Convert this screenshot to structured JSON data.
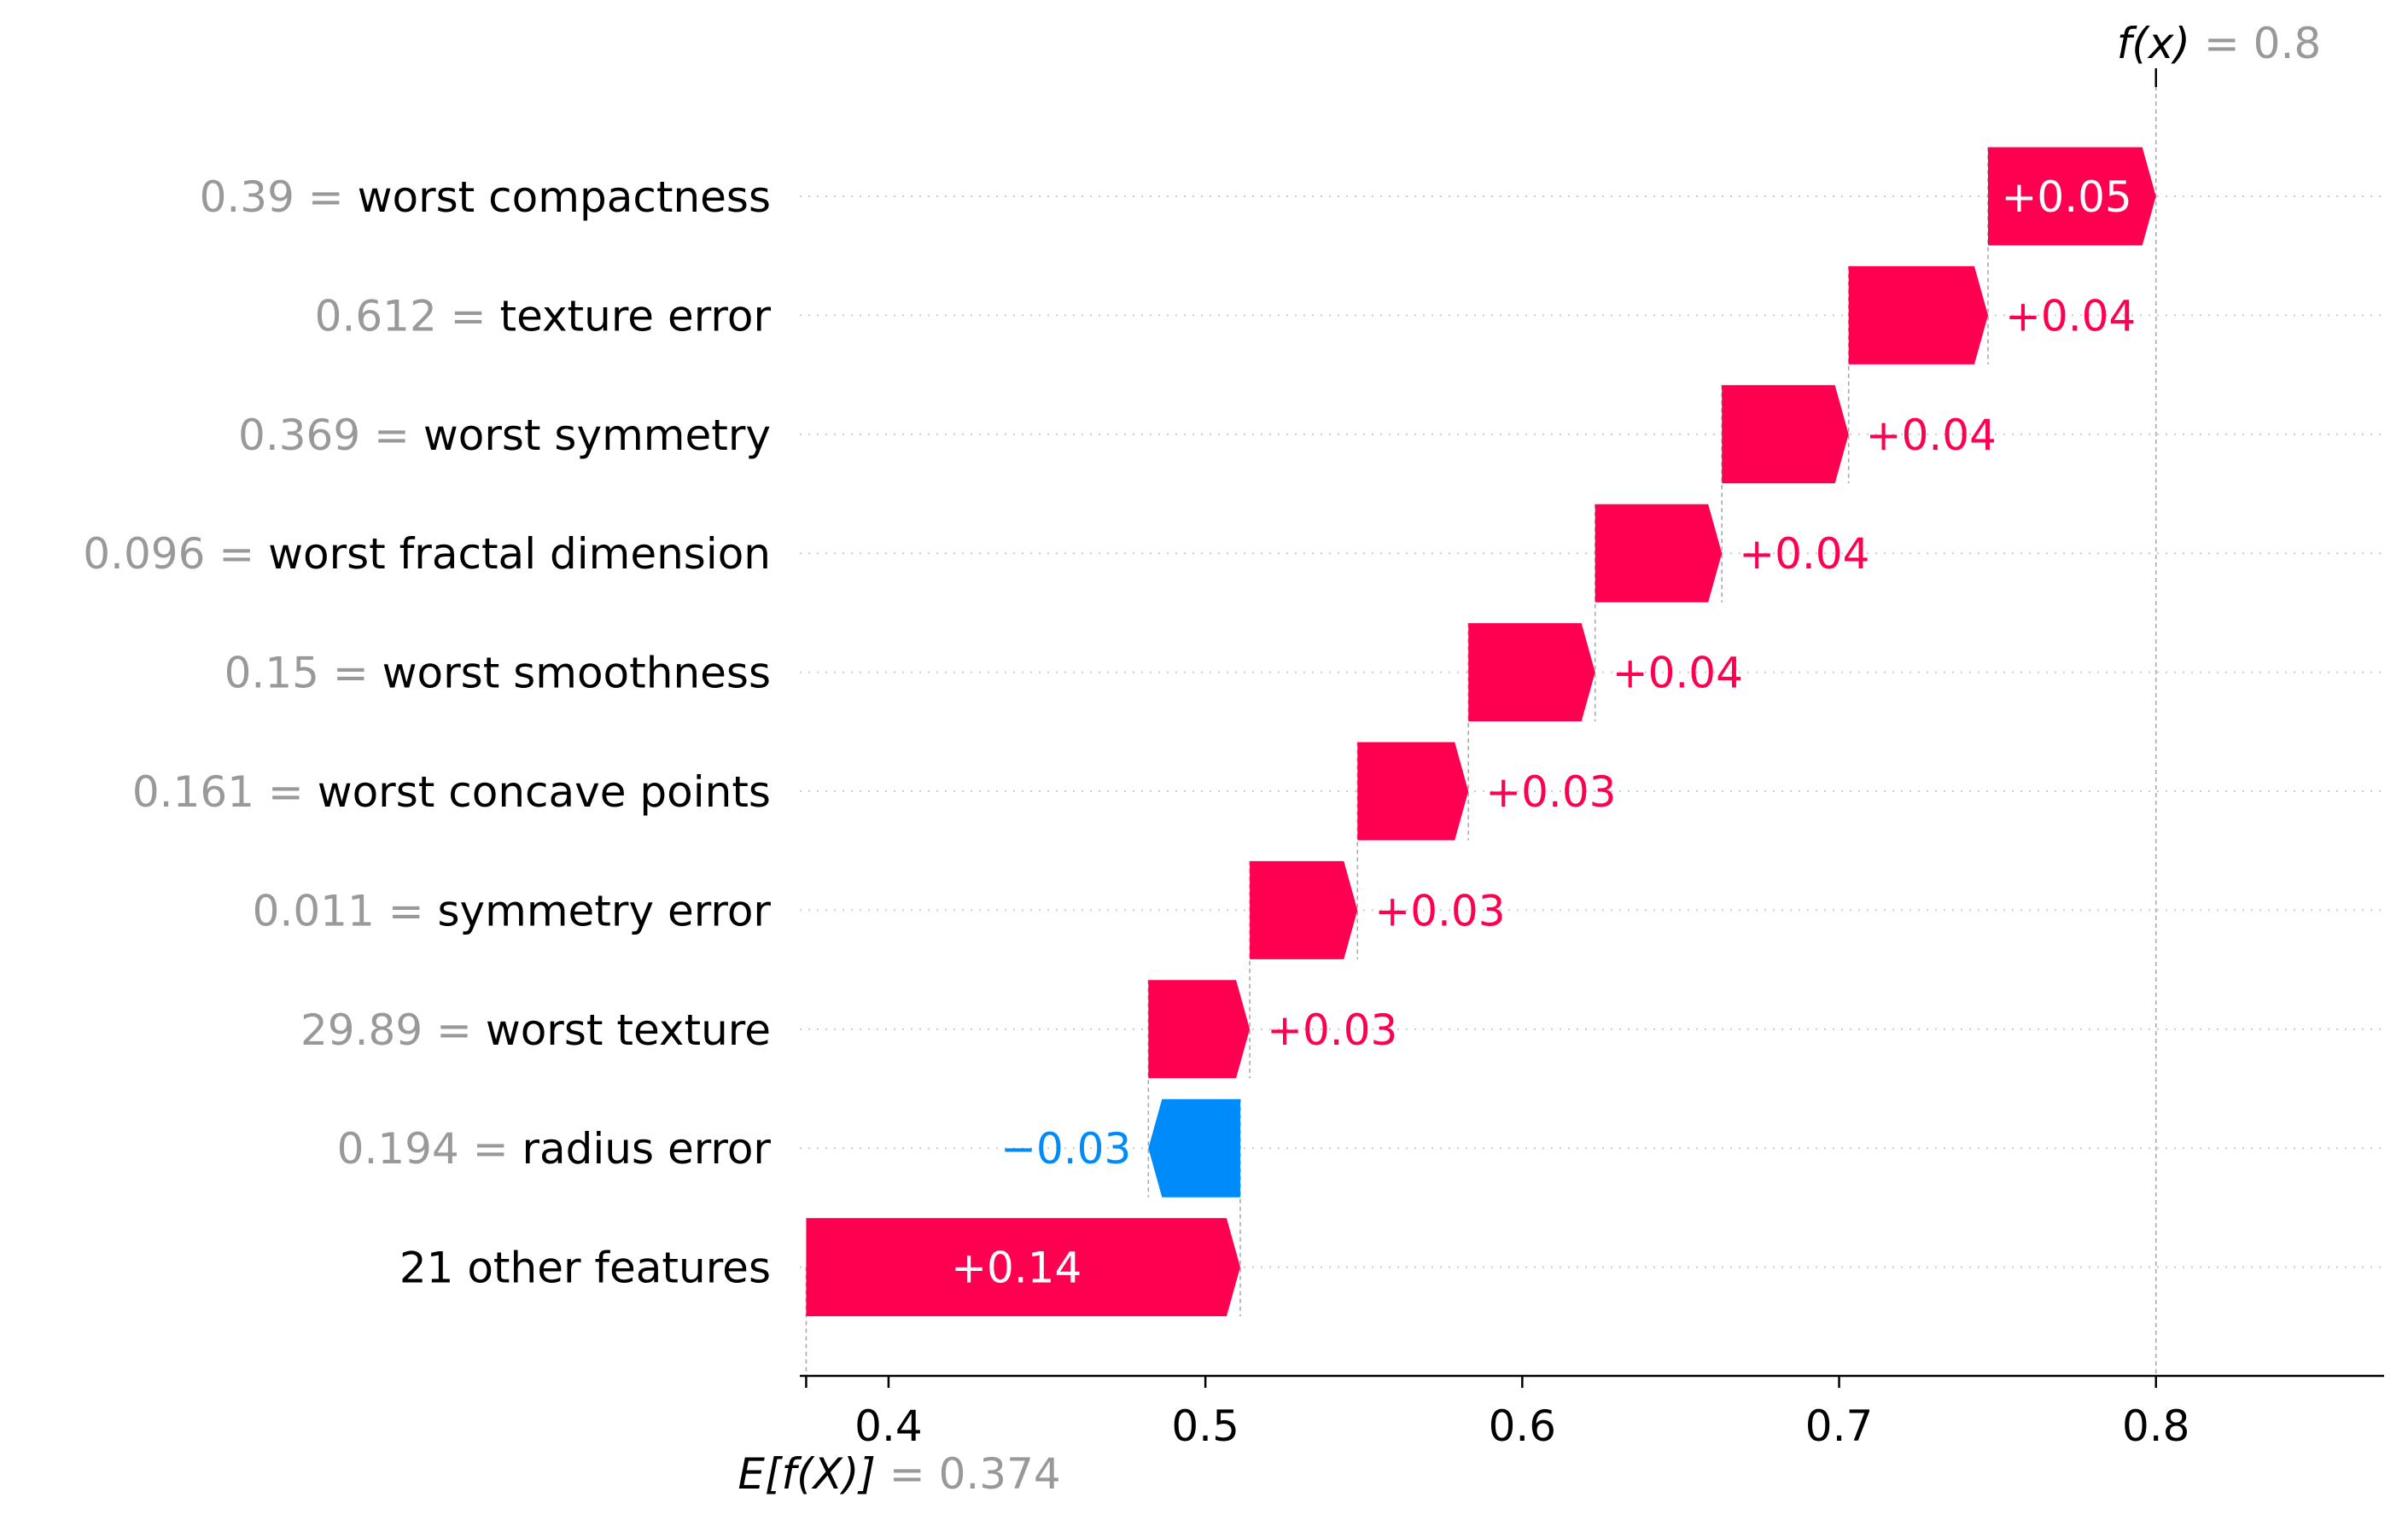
{
  "chart_data": {
    "type": "waterfall",
    "title": "",
    "base_value": 0.374,
    "base_label": {
      "func": "E[f(X)]",
      "value_text": "0.374"
    },
    "output_value": 0.8,
    "output_label": {
      "func": "f(x)",
      "value_text": "0.8"
    },
    "xlim": [
      0.372,
      0.872
    ],
    "xticks": [
      {
        "value": 0.4,
        "label": "0.4"
      },
      {
        "value": 0.5,
        "label": "0.5"
      },
      {
        "value": 0.6,
        "label": "0.6"
      },
      {
        "value": 0.7,
        "label": "0.7"
      },
      {
        "value": 0.8,
        "label": "0.8"
      }
    ],
    "features": [
      {
        "value_text": "0.39",
        "name": "worst compactness",
        "start": 0.747,
        "end": 0.8,
        "label": "+0.05"
      },
      {
        "value_text": "0.612",
        "name": "texture error",
        "start": 0.703,
        "end": 0.747,
        "label": "+0.04"
      },
      {
        "value_text": "0.369",
        "name": "worst symmetry",
        "start": 0.663,
        "end": 0.703,
        "label": "+0.04"
      },
      {
        "value_text": "0.096",
        "name": "worst fractal dimension",
        "start": 0.623,
        "end": 0.663,
        "label": "+0.04"
      },
      {
        "value_text": "0.15",
        "name": "worst smoothness",
        "start": 0.583,
        "end": 0.623,
        "label": "+0.04"
      },
      {
        "value_text": "0.161",
        "name": "worst concave points",
        "start": 0.548,
        "end": 0.583,
        "label": "+0.03"
      },
      {
        "value_text": "0.011",
        "name": "symmetry error",
        "start": 0.514,
        "end": 0.548,
        "label": "+0.03"
      },
      {
        "value_text": "29.89",
        "name": "worst texture",
        "start": 0.482,
        "end": 0.514,
        "label": "+0.03"
      },
      {
        "value_text": "0.194",
        "name": "radius error",
        "start": 0.511,
        "end": 0.482,
        "label": "−0.03"
      },
      {
        "value_text": "",
        "name": "21 other features",
        "start": 0.374,
        "end": 0.511,
        "label": "+0.14"
      }
    ],
    "colors": {
      "positive": "#ff0051",
      "negative": "#008bfb",
      "value_gray": "#999999",
      "text": "#000000"
    }
  }
}
